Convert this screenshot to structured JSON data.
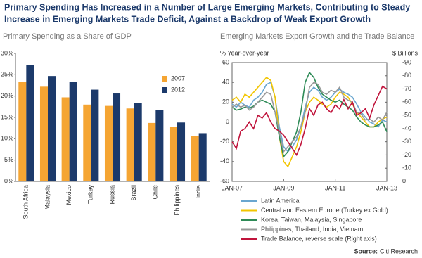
{
  "title": [
    "Primary Spending Has Increased in a Number of Large Emerging Markets, Contributing to Steady",
    "Increase in Emerging Markets Trade Deficit, Against a Backdrop of Weak Export Growth"
  ],
  "source_label": "Source:",
  "source": "Citi Research",
  "chart_data": [
    {
      "type": "bar",
      "title": "Primary Spending as a Share of GDP",
      "categories": [
        "South Africa",
        "Malaysia",
        "Mexico",
        "Turkey",
        "Russia",
        "Brazil",
        "Chile",
        "Philippines",
        "India"
      ],
      "series": [
        {
          "name": "2007",
          "color": "#f5a533",
          "values": [
            23.3,
            22.2,
            19.7,
            18.0,
            17.7,
            17.1,
            13.7,
            12.8,
            10.6
          ]
        },
        {
          "name": "2012",
          "color": "#1c3a6b",
          "values": [
            27.3,
            24.7,
            23.3,
            21.5,
            20.6,
            18.3,
            16.8,
            13.8,
            11.3
          ]
        }
      ],
      "ylim": [
        0,
        30
      ],
      "yticks": [
        {
          "value": 0,
          "label": "0%"
        },
        {
          "value": 5,
          "label": "5%"
        },
        {
          "value": 10,
          "label": "10%"
        },
        {
          "value": 15,
          "label": "15%"
        },
        {
          "value": 20,
          "label": "20%"
        },
        {
          "value": 25,
          "label": "25%"
        },
        {
          "value": 30,
          "label": "30%"
        }
      ],
      "grid": false
    },
    {
      "type": "line",
      "title": "Emerging Markets Export Growth and the Trade Balance",
      "ylabel": "% Year-over-year",
      "y2label": "$ Billions",
      "x": [
        "2007-01",
        "2007-03",
        "2007-05",
        "2007-07",
        "2007-09",
        "2007-11",
        "2008-01",
        "2008-03",
        "2008-05",
        "2008-07",
        "2008-09",
        "2008-11",
        "2009-01",
        "2009-03",
        "2009-05",
        "2009-07",
        "2009-09",
        "2009-11",
        "2010-01",
        "2010-03",
        "2010-05",
        "2010-07",
        "2010-09",
        "2010-11",
        "2011-01",
        "2011-03",
        "2011-05",
        "2011-07",
        "2011-09",
        "2011-11",
        "2012-01",
        "2012-03",
        "2012-05",
        "2012-07",
        "2012-09",
        "2012-11",
        "2013-01"
      ],
      "xlim": [
        "2007-01",
        "2013-01"
      ],
      "xticks": [
        {
          "value": "2007-01",
          "label": "JAN-07"
        },
        {
          "value": "2009-01",
          "label": "JAN-09"
        },
        {
          "value": "2011-01",
          "label": "JAN-11"
        },
        {
          "value": "2013-01",
          "label": "JAN-13"
        }
      ],
      "ylim": [
        -60,
        60
      ],
      "yticks": [
        -60,
        -40,
        -20,
        0,
        20,
        40,
        60
      ],
      "y2lim": [
        0,
        -90
      ],
      "y2ticks": [
        0,
        -10,
        -20,
        -30,
        -40,
        -50,
        -60,
        -70,
        -80,
        -90
      ],
      "series": [
        {
          "name": "Latin America",
          "color": "#6aa6cf",
          "values": [
            18,
            15,
            20,
            17,
            15,
            22,
            25,
            30,
            38,
            40,
            25,
            -5,
            -25,
            -30,
            -25,
            -18,
            -5,
            15,
            30,
            35,
            32,
            25,
            22,
            25,
            30,
            33,
            30,
            28,
            25,
            18,
            10,
            5,
            0,
            -2,
            -5,
            2,
            0
          ]
        },
        {
          "name": "Central and Eastern Europe (Turkey ex Gold)",
          "color": "#f2c500",
          "values": [
            22,
            25,
            20,
            28,
            25,
            30,
            35,
            40,
            45,
            42,
            25,
            -15,
            -40,
            -45,
            -35,
            -25,
            -10,
            10,
            20,
            25,
            22,
            18,
            15,
            18,
            25,
            30,
            28,
            25,
            18,
            10,
            5,
            0,
            -5,
            -5,
            0,
            3,
            5
          ]
        },
        {
          "name": "Korea, Taiwan, Malaysia, Singapore",
          "color": "#2e8b57",
          "values": [
            15,
            12,
            13,
            15,
            14,
            16,
            20,
            22,
            20,
            18,
            10,
            -15,
            -35,
            -30,
            -20,
            -10,
            10,
            40,
            50,
            45,
            35,
            28,
            25,
            22,
            20,
            22,
            18,
            15,
            12,
            5,
            0,
            -3,
            -5,
            -5,
            -3,
            0,
            -10
          ]
        },
        {
          "name": "Philippines, Thailand, India, Vietnam",
          "color": "#999999",
          "values": [
            15,
            18,
            15,
            17,
            12,
            15,
            20,
            25,
            30,
            28,
            10,
            -10,
            -30,
            -25,
            -20,
            -15,
            -5,
            10,
            35,
            40,
            38,
            30,
            28,
            32,
            30,
            35,
            25,
            22,
            20,
            10,
            8,
            2,
            3,
            0,
            5,
            2,
            10
          ]
        },
        {
          "name": "Trade Balance, reverse scale (Right axis)",
          "color": "#c0143c",
          "axis": "y2",
          "values": [
            -30,
            -25,
            -38,
            -40,
            -45,
            -40,
            -50,
            -48,
            -52,
            -45,
            -40,
            -38,
            -35,
            -30,
            -25,
            -20,
            -28,
            -40,
            -55,
            -50,
            -58,
            -60,
            -55,
            -52,
            -58,
            -55,
            -62,
            -55,
            -60,
            -50,
            -52,
            -55,
            -48,
            -58,
            -65,
            -72,
            -70
          ]
        }
      ],
      "grid": false
    }
  ]
}
